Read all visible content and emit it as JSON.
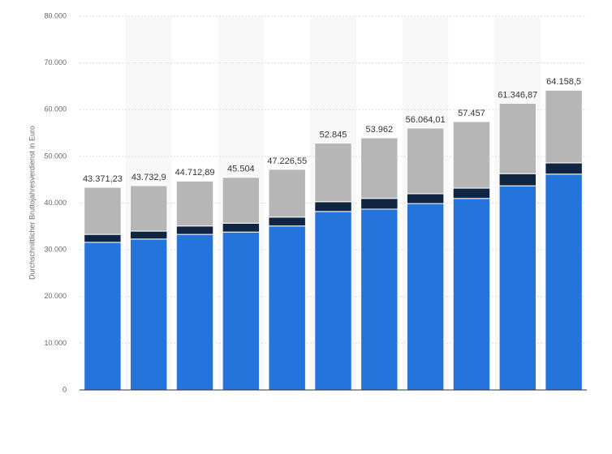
{
  "chart_data": {
    "type": "stacked_bar",
    "y_label": "Durchschnittlicher Bruttojahresverdienst in Euro",
    "categories": [
      null,
      null,
      null,
      null,
      null,
      null,
      null,
      null,
      null,
      null,
      null
    ],
    "series": [
      {
        "color": "#2574dc",
        "values": [
          31600,
          32300,
          33300,
          33800,
          35100,
          38200,
          38700,
          39900,
          41000,
          43700,
          46200
        ]
      },
      {
        "color": "#0f2541",
        "values": [
          1700,
          1700,
          1800,
          1900,
          1900,
          2100,
          2300,
          2100,
          2200,
          2600,
          2400
        ]
      },
      {
        "color": "#b6b6b6",
        "values": [
          10071.23,
          9732.9,
          9612.89,
          9804,
          10226.55,
          12545,
          12962,
          14064.01,
          14257,
          15046.87,
          15558.5
        ]
      }
    ],
    "totals": [
      {
        "value": 43371.23,
        "label": "43.371,23"
      },
      {
        "value": 43732.9,
        "label": "43.732,9"
      },
      {
        "value": 44712.89,
        "label": "44.712,89"
      },
      {
        "value": 45504,
        "label": "45.504"
      },
      {
        "value": 47226.55,
        "label": "47.226,55"
      },
      {
        "value": 52845,
        "label": "52.845"
      },
      {
        "value": 53962,
        "label": "53.962"
      },
      {
        "value": 56064.01,
        "label": "56.064,01"
      },
      {
        "value": 57457,
        "label": "57.457"
      },
      {
        "value": 61346.87,
        "label": "61.346,87"
      },
      {
        "value": 64158.5,
        "label": "64.158,5"
      }
    ],
    "ylim": [
      0,
      80000
    ],
    "yticks": [
      0,
      {
        "value": 10000,
        "label": "10.000"
      },
      {
        "value": 20000,
        "label": "20.000"
      },
      {
        "value": 30000,
        "label": "30.000"
      },
      {
        "value": 40000,
        "label": "40.000"
      },
      {
        "value": 50000,
        "label": "50.000"
      },
      {
        "value": 60000,
        "label": "60.000"
      },
      {
        "value": 70000,
        "label": "70.000"
      },
      {
        "value": 80000,
        "label": "80.000"
      }
    ],
    "grid": true
  }
}
